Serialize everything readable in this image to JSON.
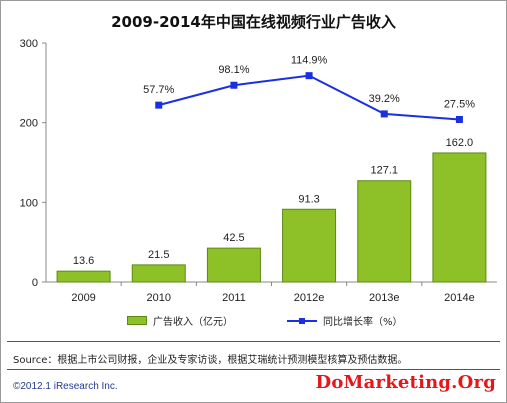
{
  "title": "2009-2014年中国在线视频行业广告收入",
  "legend": {
    "bar_label": "广告收入（亿元）",
    "line_label": "同比增长率（%）"
  },
  "source": "Source：根据上市公司财报，企业及专家访谈，根据艾瑞统计预测模型核算及预估数据。",
  "copyright": "©2012.1 iResearch Inc.",
  "watermark": "DoMarketing.Org",
  "colors": {
    "bar": "#8ec127",
    "bar_border": "#5d8a12",
    "line": "#1a2fe0"
  },
  "chart_data": {
    "type": "bar",
    "title": "2009-2014年中国在线视频行业广告收入",
    "categories": [
      "2009",
      "2010",
      "2011",
      "2012e",
      "2013e",
      "2014e"
    ],
    "ylim": [
      0,
      300
    ],
    "yticks": [
      0,
      100,
      200,
      300
    ],
    "series": [
      {
        "name": "广告收入（亿元）",
        "type": "bar",
        "values": [
          13.6,
          21.5,
          42.5,
          91.3,
          127.1,
          162.0
        ],
        "labels": [
          "13.6",
          "21.5",
          "42.5",
          "91.3",
          "127.1",
          "162.0"
        ]
      },
      {
        "name": "同比增长率（%）",
        "type": "line",
        "categories": [
          "2010",
          "2011",
          "2012e",
          "2013e",
          "2014e"
        ],
        "labels": [
          "57.7%",
          "98.1%",
          "114.9%",
          "39.2%",
          "27.5%"
        ],
        "plotted_values": [
          222,
          247,
          259,
          211,
          204
        ]
      }
    ],
    "grid": false,
    "legend_position": "bottom"
  }
}
